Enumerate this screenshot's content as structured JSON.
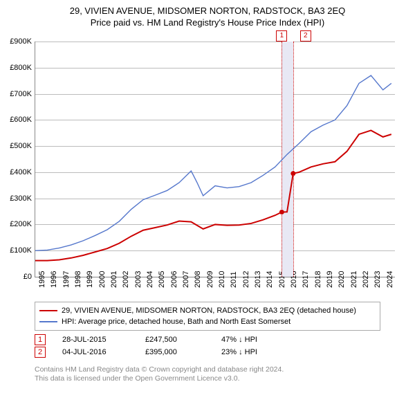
{
  "title": "29, VIVIEN AVENUE, MIDSOMER NORTON, RADSTOCK, BA3 2EQ",
  "subtitle": "Price paid vs. HM Land Registry's House Price Index (HPI)",
  "chart": {
    "type": "line",
    "x_start_year": 1995,
    "x_end_year": 2025,
    "x_tick_years": [
      1995,
      1996,
      1997,
      1998,
      1999,
      2000,
      2001,
      2002,
      2003,
      2004,
      2005,
      2006,
      2007,
      2008,
      2009,
      2010,
      2011,
      2012,
      2013,
      2014,
      2015,
      2016,
      2017,
      2018,
      2019,
      2020,
      2021,
      2022,
      2023,
      2024
    ],
    "y_min": 0,
    "y_max": 900,
    "y_tick_step": 100,
    "y_tick_labels": [
      "£0",
      "£100K",
      "£200K",
      "£300K",
      "£400K",
      "£500K",
      "£600K",
      "£700K",
      "£800K",
      "£900K"
    ],
    "background_color": "#ffffff",
    "grid_color": "#bbbbbb",
    "label_fontsize": 11,
    "title_fontsize": 13,
    "series": [
      {
        "id": "property",
        "label": "29, VIVIEN AVENUE, MIDSOMER NORTON, RADSTOCK, BA3 2EQ (detached house)",
        "color": "#cc0000",
        "line_width": 2,
        "points": [
          [
            1995.0,
            62
          ],
          [
            1996.0,
            62
          ],
          [
            1997.0,
            65
          ],
          [
            1998.0,
            72
          ],
          [
            1999.0,
            82
          ],
          [
            2000.0,
            95
          ],
          [
            2001.0,
            108
          ],
          [
            2002.0,
            128
          ],
          [
            2003.0,
            155
          ],
          [
            2004.0,
            178
          ],
          [
            2005.0,
            188
          ],
          [
            2006.0,
            198
          ],
          [
            2007.0,
            213
          ],
          [
            2008.0,
            210
          ],
          [
            2009.0,
            183
          ],
          [
            2010.0,
            200
          ],
          [
            2011.0,
            197
          ],
          [
            2012.0,
            198
          ],
          [
            2013.0,
            204
          ],
          [
            2014.0,
            218
          ],
          [
            2015.0,
            235
          ],
          [
            2015.56,
            247.5
          ],
          [
            2016.0,
            248
          ],
          [
            2016.51,
            395
          ],
          [
            2017.0,
            400
          ],
          [
            2018.0,
            420
          ],
          [
            2019.0,
            432
          ],
          [
            2020.0,
            440
          ],
          [
            2021.0,
            480
          ],
          [
            2022.0,
            545
          ],
          [
            2023.0,
            560
          ],
          [
            2024.0,
            535
          ],
          [
            2024.7,
            545
          ]
        ],
        "marker_points": [
          {
            "x": 2015.56,
            "y": 247.5
          },
          {
            "x": 2016.51,
            "y": 395
          }
        ]
      },
      {
        "id": "hpi",
        "label": "HPI: Average price, detached house, Bath and North East Somerset",
        "color": "#5577cc",
        "line_width": 1.4,
        "points": [
          [
            1995.0,
            100
          ],
          [
            1996.0,
            102
          ],
          [
            1997.0,
            110
          ],
          [
            1998.0,
            122
          ],
          [
            1999.0,
            138
          ],
          [
            2000.0,
            158
          ],
          [
            2001.0,
            180
          ],
          [
            2002.0,
            212
          ],
          [
            2003.0,
            258
          ],
          [
            2004.0,
            295
          ],
          [
            2005.0,
            312
          ],
          [
            2006.0,
            330
          ],
          [
            2007.0,
            360
          ],
          [
            2008.0,
            405
          ],
          [
            2008.5,
            360
          ],
          [
            2009.0,
            310
          ],
          [
            2010.0,
            348
          ],
          [
            2011.0,
            340
          ],
          [
            2012.0,
            345
          ],
          [
            2013.0,
            360
          ],
          [
            2014.0,
            388
          ],
          [
            2015.0,
            420
          ],
          [
            2016.0,
            468
          ],
          [
            2017.0,
            510
          ],
          [
            2018.0,
            555
          ],
          [
            2019.0,
            580
          ],
          [
            2020.0,
            600
          ],
          [
            2021.0,
            655
          ],
          [
            2022.0,
            740
          ],
          [
            2023.0,
            770
          ],
          [
            2024.0,
            715
          ],
          [
            2024.7,
            740
          ]
        ]
      }
    ],
    "markers": [
      {
        "num": "1",
        "x": 2015.56,
        "band_end_x": 2016.51
      },
      {
        "num": "2",
        "x": 2016.51
      }
    ]
  },
  "transactions": [
    {
      "num": "1",
      "date": "28-JUL-2015",
      "price": "£247,500",
      "pct": "47% ↓ HPI"
    },
    {
      "num": "2",
      "date": "04-JUL-2016",
      "price": "£395,000",
      "pct": "23% ↓ HPI"
    }
  ],
  "footer_line1": "Contains HM Land Registry data © Crown copyright and database right 2024.",
  "footer_line2": "This data is licensed under the Open Government Licence v3.0."
}
